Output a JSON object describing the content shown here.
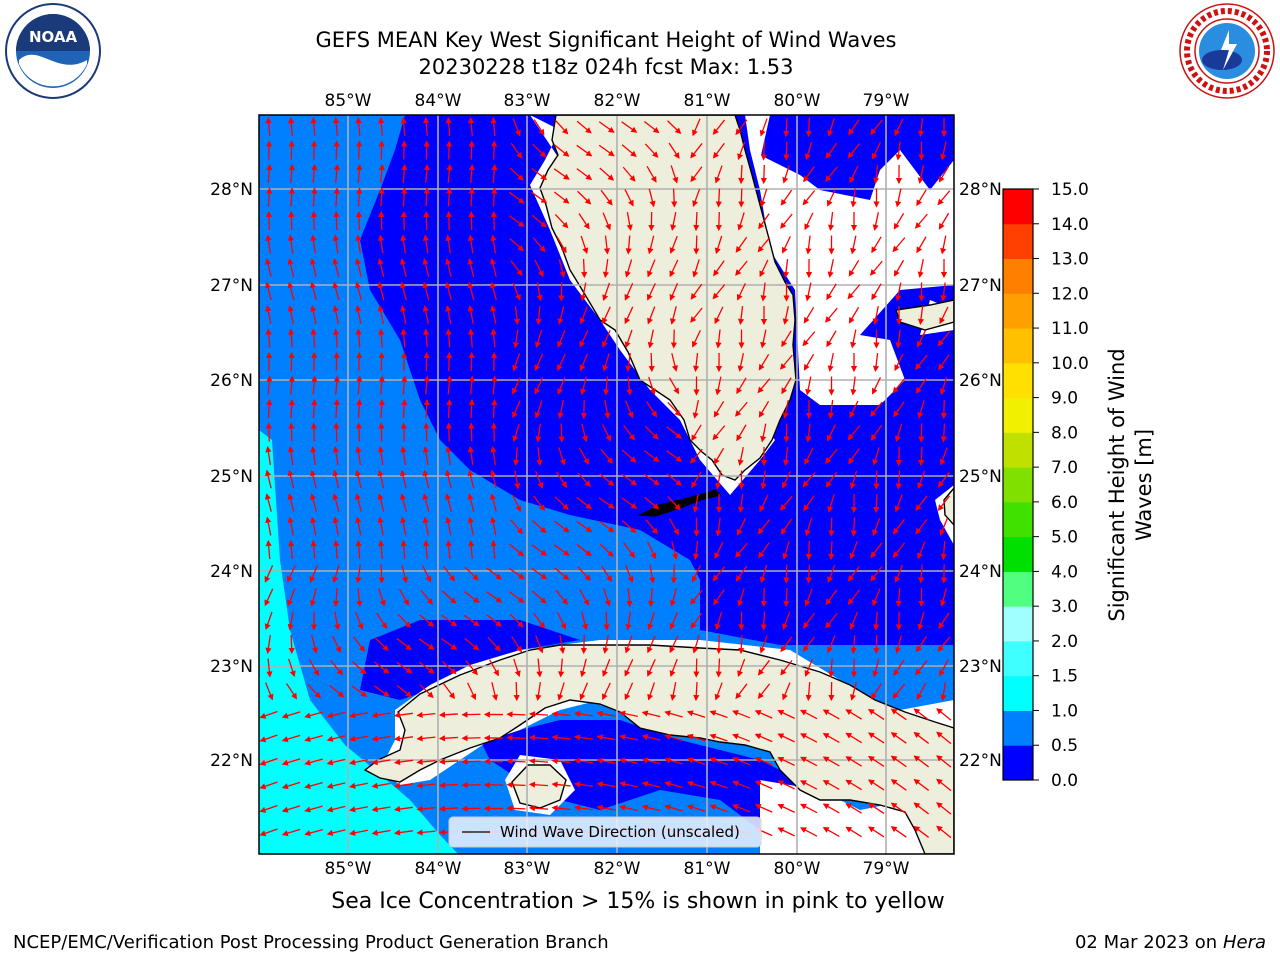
{
  "header": {
    "title_line1": "GEFS MEAN Key West Significant Height of Wind Waves",
    "title_line2": "20230228 t18z 024h fcst   Max: 1.53"
  },
  "logos": {
    "left": {
      "icon": "noaa-logo",
      "text": "NOAA",
      "ring_text": "NATIONAL OCEANIC AND ATMOSPHERIC ADMINISTRATION · U.S. DEPARTMENT OF COMMERCE"
    },
    "right": {
      "icon": "nws-logo",
      "ring_text": "NATIONAL WEATHER SERVICE"
    }
  },
  "map": {
    "lon_labels": [
      "85°W",
      "84°W",
      "83°W",
      "82°W",
      "81°W",
      "80°W",
      "79°W"
    ],
    "lat_labels": [
      "28°N",
      "27°N",
      "26°N",
      "25°N",
      "24°N",
      "23°N",
      "22°N"
    ],
    "legend_label": "Wind Wave Direction (unscaled)",
    "colors": {
      "land": "#eeeedd",
      "band_0_0_5": "#0000ff",
      "band_0_5_1_0": "#0080ff",
      "band_1_0_1_5": "#00ffff",
      "no_data": "#ffffff",
      "arrow": "#ff0000",
      "grid": "#b0b0b0"
    }
  },
  "colorbar": {
    "label_line1": "Significant Height of Wind",
    "label_line2": "Waves [m]",
    "ticks": [
      "0.0",
      "0.5",
      "1.0",
      "1.5",
      "2.0",
      "3.0",
      "4.0",
      "5.0",
      "6.0",
      "7.0",
      "8.0",
      "9.0",
      "10.0",
      "11.0",
      "12.0",
      "13.0",
      "14.0",
      "15.0"
    ],
    "colors": [
      "#0000ff",
      "#0080ff",
      "#00ffff",
      "#40ffff",
      "#a0ffff",
      "#50ff80",
      "#00e000",
      "#40e000",
      "#80e000",
      "#c0e000",
      "#f0f000",
      "#ffe000",
      "#ffc000",
      "#ffa000",
      "#ff8000",
      "#ff4000",
      "#ff0000"
    ]
  },
  "sea_ice_note": "Sea Ice Concentration > 15% is shown in pink to yellow",
  "footer": {
    "left": "NCEP/EMC/Verification Post Processing Product Generation Branch",
    "right_date": "02 Mar 2023 on",
    "right_host": "Hera"
  }
}
